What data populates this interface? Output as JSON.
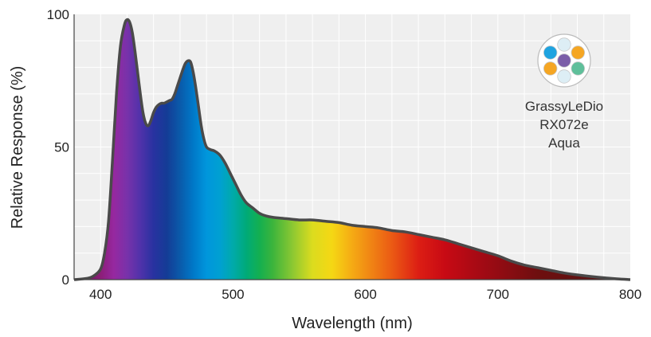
{
  "chart_data": {
    "type": "area",
    "title": "",
    "xlabel": "Wavelength (nm)",
    "ylabel": "Relative Response (%)",
    "xlim": [
      380,
      800
    ],
    "ylim": [
      0,
      100
    ],
    "x_ticks": [
      400,
      500,
      600,
      700,
      800
    ],
    "y_ticks": [
      0,
      50,
      100
    ],
    "x_tick_labels": [
      "400",
      "500",
      "600",
      "700",
      "800"
    ],
    "y_tick_labels": [
      "0",
      "50",
      "100"
    ],
    "x_grid_step": 20,
    "y_grid_step": 10,
    "grid": true,
    "fill": "spectral-gradient",
    "series": [
      {
        "name": "GrassyLeDio RX072e Aqua",
        "x": [
          380,
          390,
          395,
          400,
          403,
          406,
          409,
          412,
          415,
          418,
          420,
          422,
          424,
          426,
          428,
          430,
          432,
          434,
          436,
          438,
          440,
          442,
          444,
          446,
          448,
          450,
          452,
          454,
          456,
          458,
          460,
          462,
          464,
          466,
          468,
          470,
          472,
          474,
          476,
          478,
          480,
          483,
          486,
          490,
          494,
          498,
          502,
          506,
          510,
          515,
          520,
          525,
          530,
          540,
          550,
          560,
          570,
          580,
          590,
          600,
          610,
          620,
          630,
          640,
          650,
          660,
          670,
          680,
          690,
          700,
          710,
          720,
          730,
          740,
          750,
          760,
          770,
          780,
          790,
          800
        ],
        "y": [
          0,
          0.5,
          1.5,
          4,
          10,
          22,
          45,
          70,
          88,
          96,
          98,
          97,
          93,
          86,
          78,
          70,
          63,
          59,
          58,
          60,
          63,
          65,
          66,
          66.5,
          66.5,
          67,
          67.5,
          68,
          70,
          73,
          76,
          79,
          81.5,
          82.5,
          82,
          78,
          72,
          65,
          58,
          53,
          50,
          49,
          48.5,
          47,
          44,
          40,
          36,
          32,
          29,
          27,
          25,
          24,
          23.5,
          23,
          22.5,
          22.5,
          22,
          21.5,
          20.5,
          20,
          19.5,
          18.5,
          18,
          17,
          16,
          15,
          13.5,
          12,
          10.5,
          9,
          7,
          5.5,
          4.5,
          3.5,
          2.5,
          1.8,
          1.2,
          0.7,
          0.3,
          0
        ]
      }
    ],
    "legend": {
      "placement": "top-right",
      "lines": [
        "GrassyLeDio",
        "RX072e",
        "Aqua"
      ],
      "logo_colors": {
        "center": "#7b5ea8",
        "top": "#ddeef5",
        "top_right": "#f5a623",
        "bottom_right": "#5fbf9a",
        "bottom": "#ddeef5",
        "bottom_left": "#f5a623",
        "top_left": "#1ea3e0"
      }
    }
  },
  "colors": {
    "plot_background": "#efefef",
    "grid": "#ffffff",
    "axis": "#444444",
    "outline": "#4a4a4a"
  }
}
